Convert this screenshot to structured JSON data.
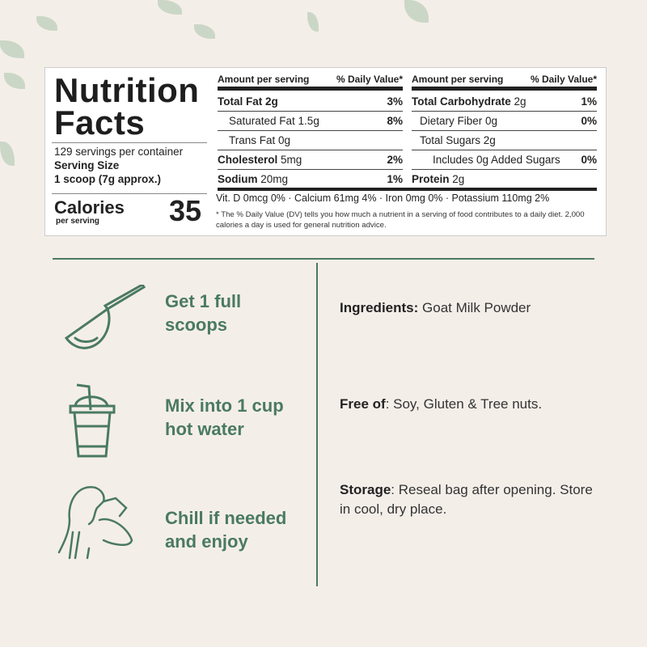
{
  "colors": {
    "accent": "#4a7a62",
    "background": "#f4eee9"
  },
  "nutrition": {
    "title_line1": "Nutrition",
    "title_line2": "Facts",
    "servings": "129 servings per container",
    "serving_size_label": "Serving Size",
    "serving_size_value": "1 scoop (7g approx.)",
    "calories_label": "Calories",
    "calories_sub": "per serving",
    "calories_value": "35",
    "header_amount": "Amount per serving",
    "header_dv": "% Daily Value*",
    "left_rows": [
      {
        "bold": "Total Fat 2g",
        "text": "",
        "dv": "3%"
      },
      {
        "bold": "",
        "text": "Saturated Fat 1.5g",
        "dv": "8%"
      },
      {
        "bold": "",
        "text": "Trans Fat 0g",
        "dv": ""
      },
      {
        "bold": "Cholesterol",
        "text": " 5mg",
        "dv": "2%"
      },
      {
        "bold": "Sodium",
        "text": " 20mg",
        "dv": "1%"
      }
    ],
    "right_rows": [
      {
        "bold": "Total Carbohydrate",
        "text": " 2g",
        "dv": "1%"
      },
      {
        "bold": "",
        "text": "Dietary Fiber 0g",
        "dv": "0%"
      },
      {
        "bold": "",
        "text": "Total Sugars 2g",
        "dv": ""
      },
      {
        "bold": "",
        "text": "Includes 0g Added Sugars",
        "dv": "0%"
      },
      {
        "bold": "Protein",
        "text": " 2g",
        "dv": ""
      }
    ],
    "vitamins": "Vit. D 0mcg 0% · Calcium 61mg 4% · Iron 0mg 0% · Potassium 110mg 2%",
    "footnote": "* The % Daily Value (DV) tells you how much a nutrient in a serving of food contributes to a daily diet. 2,000 calories a day is used for general nutrition advice."
  },
  "steps": [
    {
      "icon": "scoop-icon",
      "line1": "Get 1 full",
      "line2": "scoops"
    },
    {
      "icon": "cup-icon",
      "line1": "Mix into 1 cup",
      "line2": "hot water"
    },
    {
      "icon": "woman-drinking-icon",
      "line1": "Chill if needed",
      "line2": "and enjoy"
    }
  ],
  "info": [
    {
      "label": "Ingredients:",
      "text": " Goat Milk Powder"
    },
    {
      "label": "Free of",
      "text": ": Soy, Gluten & Tree nuts."
    },
    {
      "label": "Storage",
      "text": ": Reseal bag after opening. Store in cool, dry place."
    }
  ]
}
